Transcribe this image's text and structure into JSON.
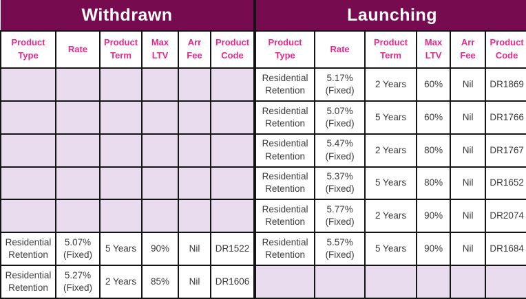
{
  "table": {
    "columns": [
      "Product Type",
      "Rate",
      "Product Term",
      "Max LTV",
      "Arr Fee",
      "Product Code"
    ],
    "sections": {
      "withdrawn": {
        "title": "Withdrawn",
        "rows": [
          [
            "",
            "",
            "",
            "",
            "",
            ""
          ],
          [
            "",
            "",
            "",
            "",
            "",
            ""
          ],
          [
            "",
            "",
            "",
            "",
            "",
            ""
          ],
          [
            "",
            "",
            "",
            "",
            "",
            ""
          ],
          [
            "",
            "",
            "",
            "",
            "",
            ""
          ],
          [
            "Residential Retention",
            "5.07% (Fixed)",
            "5 Years",
            "90%",
            "Nil",
            "DR1522"
          ],
          [
            "Residential Retention",
            "5.27% (Fixed)",
            "2 Years",
            "85%",
            "Nil",
            "DR1606"
          ]
        ]
      },
      "launching": {
        "title": "Launching",
        "rows": [
          [
            "Residential Retention",
            "5.17% (Fixed)",
            "2 Years",
            "60%",
            "Nil",
            "DR1869"
          ],
          [
            "Residential Retention",
            "5.07% (Fixed)",
            "5 Years",
            "60%",
            "Nil",
            "DR1766"
          ],
          [
            "Residential Retention",
            "5.47% (Fixed)",
            "2 Years",
            "80%",
            "Nil",
            "DR1767"
          ],
          [
            "Residential Retention",
            "5.37% (Fixed)",
            "5 Years",
            "80%",
            "Nil",
            "DR1652"
          ],
          [
            "Residential Retention",
            "5.77% (Fixed)",
            "2 Years",
            "90%",
            "Nil",
            "DR2074"
          ],
          [
            "Residential Retention",
            "5.57% (Fixed)",
            "5 Years",
            "90%",
            "Nil",
            "DR1684"
          ],
          [
            "",
            "",
            "",
            "",
            "",
            ""
          ]
        ]
      }
    }
  },
  "colors": {
    "title_background": "#770b50",
    "title_text": "#ffffff",
    "column_header_text": "#e9288c",
    "empty_cell_fill": "#e8dcee",
    "data_text": "#3a3a3a",
    "grid_border": "#141414"
  }
}
